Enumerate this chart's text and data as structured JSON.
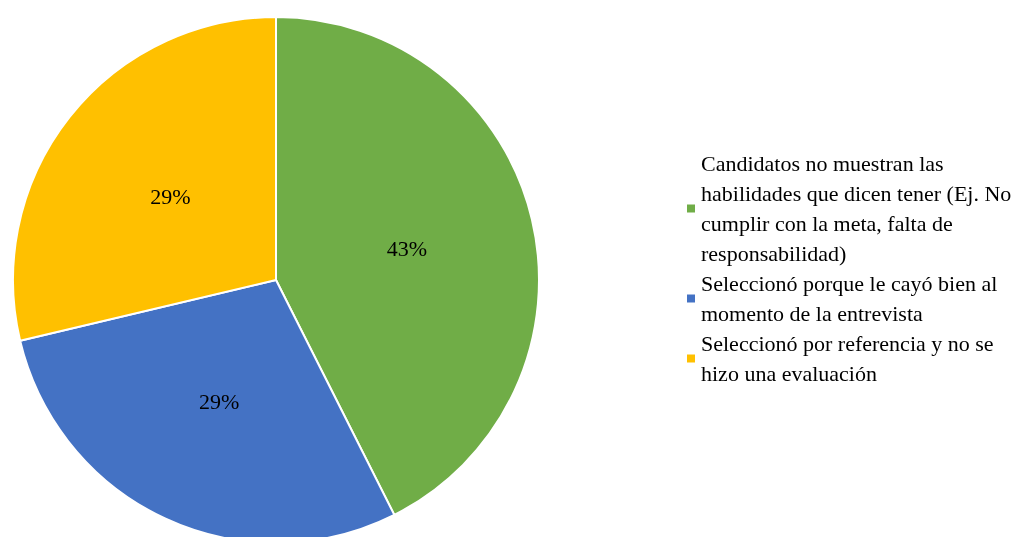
{
  "chart_data": {
    "type": "pie",
    "categories": [
      "Candidatos no muestran las habilidades que dicen tener (Ej. No cumplir con la meta, falta de responsabilidad)",
      "Seleccionó porque le cayó bien al momento de la entrevista",
      "Seleccionó por referencia y no se hizo una evaluación"
    ],
    "values": [
      43,
      29,
      29
    ],
    "colors": [
      "#70ad47",
      "#4472c4",
      "#ffc000"
    ],
    "value_labels": [
      "43%",
      "29%",
      "29%"
    ],
    "legend": "right"
  }
}
